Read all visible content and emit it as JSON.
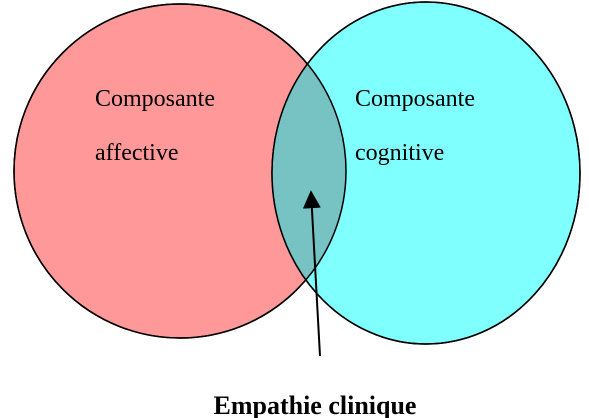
{
  "sets": [
    {
      "lines": [
        "Composante",
        "affective"
      ]
    },
    {
      "lines": [
        "Composante",
        "cognitive"
      ]
    }
  ],
  "overlap": {
    "label": "Empathie clinique"
  }
}
